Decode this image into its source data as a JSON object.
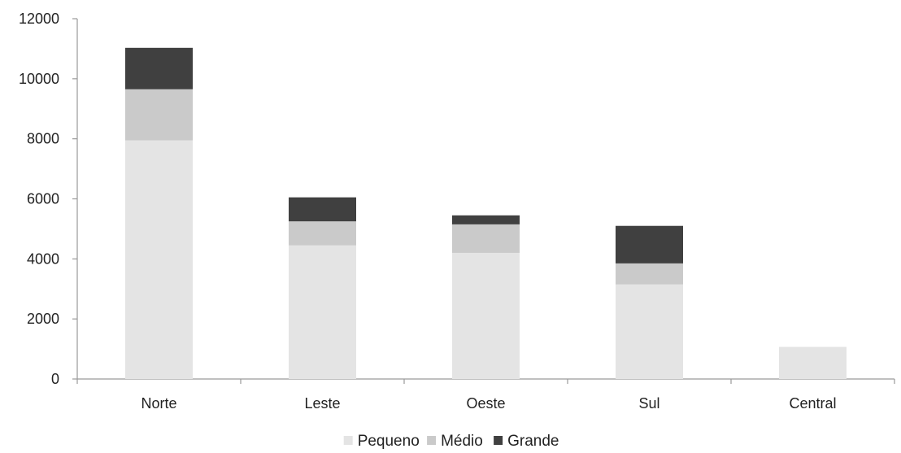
{
  "chart_data": {
    "type": "bar",
    "stacked": true,
    "categories": [
      "Norte",
      "Leste",
      "Oeste",
      "Sul",
      "Central"
    ],
    "series": [
      {
        "name": "Pequeno",
        "values": [
          7950,
          4450,
          4200,
          3150,
          1070
        ]
      },
      {
        "name": "Médio",
        "values": [
          1700,
          800,
          950,
          700,
          0
        ]
      },
      {
        "name": "Grande",
        "values": [
          1380,
          800,
          300,
          1250,
          0
        ]
      }
    ],
    "colors": [
      "#e4e4e4",
      "#cacaca",
      "#404040"
    ],
    "ylim": [
      0,
      12000
    ],
    "yticks": [
      0,
      2000,
      4000,
      6000,
      8000,
      10000,
      12000
    ],
    "grid": false,
    "legend_position": "bottom"
  }
}
